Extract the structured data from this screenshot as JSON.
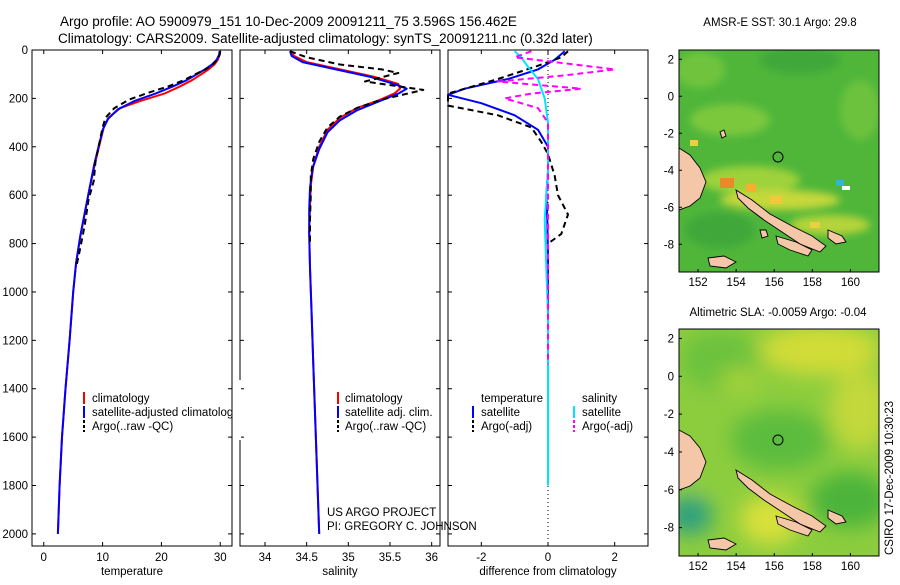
{
  "header": {
    "line1": "Argo profile: AO 5900979_151 10-Dec-2009 20091211_75 3.596S 156.462E",
    "line2": "Climatology: CARS2009. Satellite-adjusted climatology: synTS_20091211.nc (0.32d later)"
  },
  "side_stamp": "CSIRO 17-Dec-2009 10:30:23",
  "project": {
    "line1": "US ARGO PROJECT",
    "line2": "PI: GREGORY C. JOHNSON"
  },
  "colors": {
    "climatology": "#ff0000",
    "satellite": "#0000ff",
    "argo": "#000000",
    "satellite_salinity": "#00e5ff",
    "argo_salinity": "#ff00ff",
    "land": "#f5c7a9"
  },
  "chart_data": [
    {
      "type": "line",
      "xlabel": "temperature",
      "ylabel": "",
      "xlim": [
        -2,
        32
      ],
      "ylim": [
        0,
        2050
      ],
      "y_reversed": true,
      "xticks": [
        0,
        10,
        20,
        30
      ],
      "yticks": [
        0,
        200,
        400,
        600,
        800,
        1000,
        1200,
        1400,
        1600,
        1800,
        2000
      ],
      "legend": [
        "climatology",
        "satellite-adjusted climatology",
        "Argo(..raw -QC)"
      ],
      "series": [
        {
          "color": "#ff0000",
          "dash": "",
          "points": [
            [
              30.0,
              5
            ],
            [
              29.9,
              20
            ],
            [
              29.6,
              40
            ],
            [
              29.0,
              60
            ],
            [
              28.0,
              80
            ],
            [
              26.8,
              100
            ],
            [
              25.2,
              125
            ],
            [
              23.2,
              150
            ],
            [
              20.5,
              180
            ],
            [
              16.5,
              210
            ],
            [
              13.0,
              240
            ],
            [
              11.0,
              280
            ],
            [
              10.2,
              320
            ],
            [
              9.6,
              380
            ],
            [
              8.8,
              460
            ],
            [
              7.9,
              560
            ],
            [
              7.1,
              660
            ],
            [
              6.3,
              760
            ],
            [
              5.5,
              880
            ],
            [
              5.0,
              1000
            ],
            [
              4.4,
              1200
            ],
            [
              3.7,
              1400
            ],
            [
              3.1,
              1600
            ],
            [
              2.7,
              1800
            ],
            [
              2.4,
              2000
            ]
          ]
        },
        {
          "color": "#0000ff",
          "dash": "",
          "points": [
            [
              29.9,
              5
            ],
            [
              29.8,
              20
            ],
            [
              29.4,
              40
            ],
            [
              28.6,
              60
            ],
            [
              27.4,
              80
            ],
            [
              26.0,
              100
            ],
            [
              24.3,
              125
            ],
            [
              22.0,
              150
            ],
            [
              19.0,
              180
            ],
            [
              15.5,
              210
            ],
            [
              12.6,
              245
            ],
            [
              10.9,
              285
            ],
            [
              10.1,
              325
            ],
            [
              9.4,
              390
            ],
            [
              8.6,
              470
            ],
            [
              7.8,
              570
            ],
            [
              7.0,
              670
            ],
            [
              6.2,
              770
            ],
            [
              5.5,
              880
            ],
            [
              5.0,
              1000
            ],
            [
              4.4,
              1200
            ],
            [
              3.7,
              1400
            ],
            [
              3.1,
              1600
            ],
            [
              2.7,
              1800
            ],
            [
              2.4,
              2000
            ]
          ]
        },
        {
          "color": "#000000",
          "dash": "6,4",
          "points": [
            [
              30.0,
              5
            ],
            [
              29.9,
              20
            ],
            [
              29.5,
              40
            ],
            [
              28.7,
              60
            ],
            [
              27.5,
              80
            ],
            [
              25.8,
              100
            ],
            [
              23.8,
              125
            ],
            [
              21.2,
              150
            ],
            [
              18.0,
              175
            ],
            [
              14.5,
              205
            ],
            [
              12.0,
              240
            ],
            [
              10.5,
              280
            ],
            [
              10.0,
              320
            ],
            [
              9.5,
              380
            ],
            [
              8.8,
              460
            ],
            [
              8.5,
              540
            ],
            [
              7.6,
              620
            ],
            [
              7.0,
              720
            ],
            [
              6.2,
              820
            ],
            [
              5.5,
              900
            ]
          ]
        }
      ]
    },
    {
      "type": "line",
      "xlabel": "salinity",
      "ylabel": "",
      "xlim": [
        33.7,
        36.1
      ],
      "ylim": [
        0,
        2050
      ],
      "y_reversed": true,
      "xticks": [
        34,
        34.5,
        35,
        35.5,
        36
      ],
      "yticks": [
        0,
        200,
        400,
        600,
        800,
        1000,
        1200,
        1400,
        1600,
        1800,
        2000
      ],
      "legend": [
        "climatology",
        "satellite adj. clim.",
        "Argo(..raw -QC)"
      ],
      "series": [
        {
          "color": "#ff0000",
          "dash": "",
          "points": [
            [
              34.3,
              5
            ],
            [
              34.35,
              25
            ],
            [
              34.5,
              50
            ],
            [
              34.9,
              80
            ],
            [
              35.3,
              110
            ],
            [
              35.6,
              140
            ],
            [
              35.62,
              160
            ],
            [
              35.55,
              180
            ],
            [
              35.35,
              210
            ],
            [
              35.1,
              240
            ],
            [
              34.9,
              280
            ],
            [
              34.75,
              330
            ],
            [
              34.65,
              400
            ],
            [
              34.58,
              480
            ],
            [
              34.55,
              560
            ],
            [
              34.54,
              650
            ],
            [
              34.53,
              750
            ],
            [
              34.54,
              900
            ],
            [
              34.56,
              1100
            ],
            [
              34.58,
              1300
            ],
            [
              34.6,
              1500
            ],
            [
              34.62,
              1700
            ],
            [
              34.65,
              2000
            ]
          ]
        },
        {
          "color": "#0000ff",
          "dash": "",
          "points": [
            [
              34.3,
              5
            ],
            [
              34.32,
              25
            ],
            [
              34.45,
              50
            ],
            [
              34.85,
              80
            ],
            [
              35.25,
              110
            ],
            [
              35.55,
              140
            ],
            [
              35.7,
              160
            ],
            [
              35.6,
              180
            ],
            [
              35.35,
              215
            ],
            [
              35.1,
              250
            ],
            [
              34.9,
              290
            ],
            [
              34.75,
              340
            ],
            [
              34.65,
              410
            ],
            [
              34.57,
              490
            ],
            [
              34.54,
              570
            ],
            [
              34.53,
              660
            ],
            [
              34.53,
              760
            ],
            [
              34.54,
              900
            ],
            [
              34.56,
              1100
            ],
            [
              34.58,
              1300
            ],
            [
              34.6,
              1500
            ],
            [
              34.62,
              1700
            ],
            [
              34.65,
              2000
            ]
          ]
        },
        {
          "color": "#000000",
          "dash": "6,4",
          "points": [
            [
              34.3,
              5
            ],
            [
              34.5,
              30
            ],
            [
              34.9,
              60
            ],
            [
              35.4,
              80
            ],
            [
              35.6,
              95
            ],
            [
              35.2,
              130
            ],
            [
              35.9,
              165
            ],
            [
              35.4,
              205
            ],
            [
              35.1,
              240
            ],
            [
              34.9,
              275
            ],
            [
              34.75,
              320
            ],
            [
              34.65,
              380
            ],
            [
              34.58,
              450
            ],
            [
              34.55,
              520
            ],
            [
              34.55,
              600
            ],
            [
              34.54,
              700
            ],
            [
              34.54,
              800
            ]
          ]
        }
      ]
    },
    {
      "type": "line",
      "xlabel": "difference from climatology",
      "ylabel": "",
      "xlim": [
        -3,
        3
      ],
      "ylim": [
        0,
        2050
      ],
      "y_reversed": true,
      "xticks": [
        -2,
        0,
        2
      ],
      "yticks": [
        0,
        200,
        400,
        600,
        800,
        1000,
        1200,
        1400,
        1600,
        1800,
        2000
      ],
      "legend_temperature_title": "temperature",
      "legend_salinity_title": "salinity",
      "legend": [
        "satellite",
        "Argo(-adj)",
        "satellite",
        "Argo(-adj)"
      ],
      "series": [
        {
          "color": "#0000ff",
          "dash": "",
          "points": [
            [
              0.5,
              5
            ],
            [
              0.2,
              40
            ],
            [
              -0.3,
              80
            ],
            [
              -1.2,
              120
            ],
            [
              -2.5,
              160
            ],
            [
              -3.0,
              185
            ],
            [
              -2.0,
              220
            ],
            [
              -1.0,
              270
            ],
            [
              -0.3,
              330
            ],
            [
              0.0,
              400
            ],
            [
              0.0,
              500
            ],
            [
              -0.05,
              600
            ],
            [
              -0.02,
              700
            ],
            [
              0.0,
              850
            ],
            [
              0.0,
              1000
            ],
            [
              0.0,
              1500
            ],
            [
              0.0,
              1800
            ]
          ]
        },
        {
          "color": "#000000",
          "dash": "6,4",
          "points": [
            [
              0.6,
              5
            ],
            [
              0.4,
              30
            ],
            [
              -0.4,
              70
            ],
            [
              -1.5,
              120
            ],
            [
              -3.0,
              180
            ],
            [
              -3.0,
              230
            ],
            [
              -1.5,
              270
            ],
            [
              -0.5,
              320
            ],
            [
              -0.2,
              380
            ],
            [
              0.0,
              430
            ],
            [
              0.2,
              520
            ],
            [
              0.3,
              600
            ],
            [
              0.6,
              680
            ],
            [
              0.4,
              760
            ],
            [
              0.0,
              800
            ]
          ]
        },
        {
          "color": "#00e5ff",
          "dash": "",
          "points": [
            [
              -1.0,
              5
            ],
            [
              -0.8,
              30
            ],
            [
              -0.6,
              70
            ],
            [
              -0.3,
              120
            ],
            [
              -0.1,
              200
            ],
            [
              0.0,
              300
            ],
            [
              0.0,
              500
            ],
            [
              -0.1,
              700
            ],
            [
              -0.05,
              900
            ],
            [
              0.0,
              1100
            ],
            [
              0.0,
              1400
            ],
            [
              0.0,
              1800
            ]
          ]
        },
        {
          "color": "#ff00ff",
          "dash": "6,4",
          "points": [
            [
              -0.5,
              5
            ],
            [
              -1.0,
              30
            ],
            [
              0.5,
              55
            ],
            [
              2.0,
              80
            ],
            [
              0.5,
              105
            ],
            [
              -1.5,
              130
            ],
            [
              1.0,
              160
            ],
            [
              -0.5,
              180
            ],
            [
              -1.3,
              200
            ],
            [
              -0.3,
              240
            ],
            [
              0.0,
              300
            ],
            [
              0.0,
              500
            ],
            [
              0.0,
              800
            ],
            [
              0.0,
              1100
            ],
            [
              0.0,
              1300
            ]
          ]
        }
      ]
    },
    {
      "type": "heatmap",
      "title": "AMSR-E SST: 30.1 Argo: 29.8",
      "xlim": [
        151,
        161.5
      ],
      "ylim": [
        -9.5,
        2.5
      ],
      "xticks": [
        152,
        154,
        156,
        158,
        160
      ],
      "yticks": [
        -8,
        -6,
        -4,
        -2,
        0,
        2
      ],
      "argo_position": [
        156.46,
        -3.6
      ]
    },
    {
      "type": "heatmap",
      "title": "Altimetric SLA: -0.0059 Argo: -0.04",
      "xlim": [
        151,
        161.5
      ],
      "ylim": [
        -9.5,
        2.5
      ],
      "xticks": [
        152,
        154,
        156,
        158,
        160
      ],
      "yticks": [
        -8,
        -6,
        -4,
        -2,
        0,
        2
      ],
      "argo_position": [
        156.46,
        -3.6
      ]
    }
  ]
}
